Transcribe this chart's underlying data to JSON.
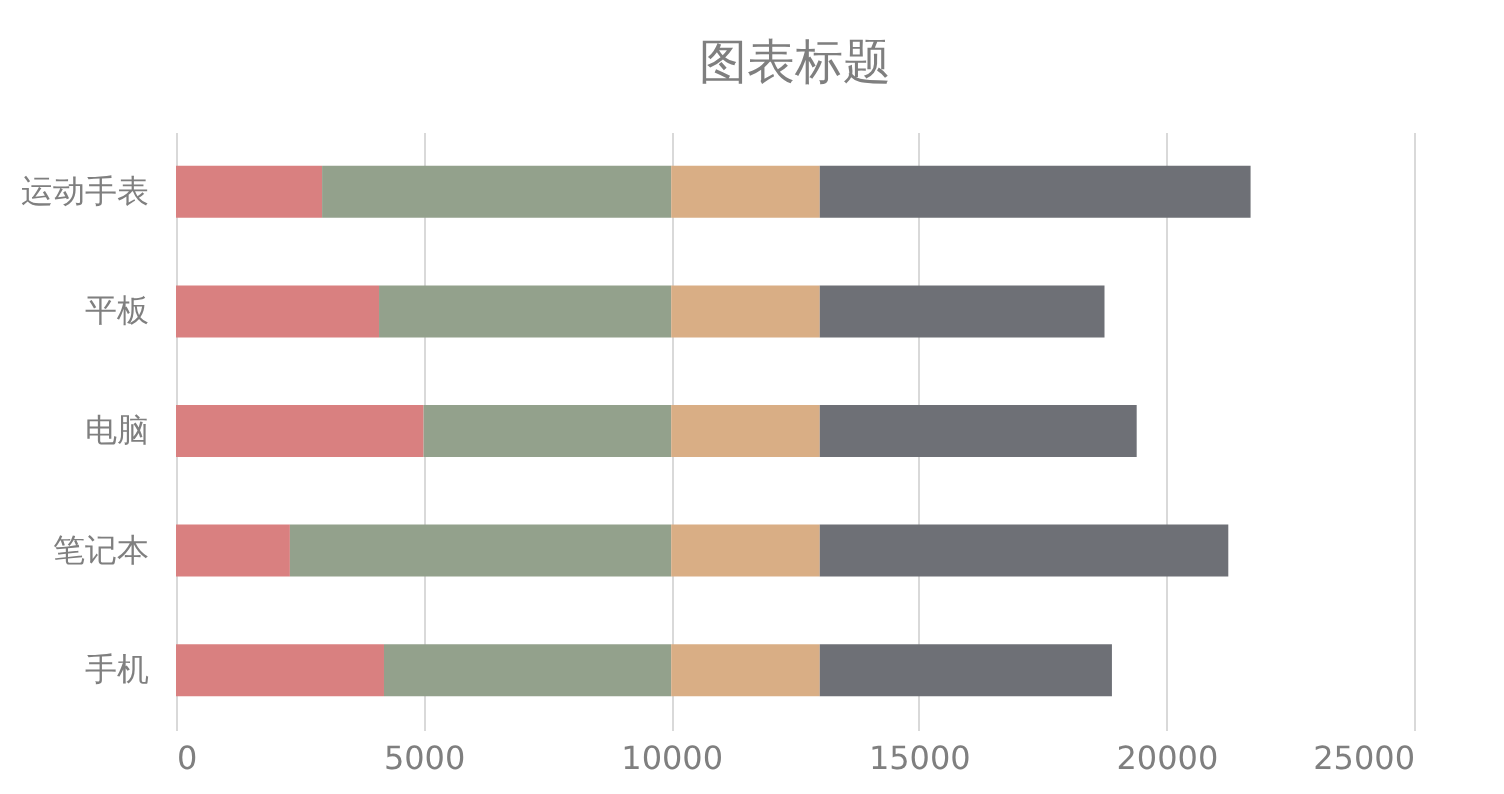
{
  "chart_data": {
    "type": "bar",
    "orientation": "horizontal",
    "stacked": true,
    "title": "图表标题",
    "categories": [
      "运动手表",
      "平板",
      "电脑",
      "笔记本",
      "手机"
    ],
    "series": [
      {
        "color": "#d98080",
        "values": [
          2950,
          4100,
          5000,
          2300,
          4200
        ]
      },
      {
        "color": "#93a18c",
        "values": [
          7050,
          5900,
          5000,
          7700,
          5800
        ]
      },
      {
        "color": "#d9ae85",
        "values": [
          3000,
          3000,
          3000,
          3000,
          3000
        ]
      },
      {
        "color": "#6e7076",
        "values": [
          8700,
          5750,
          6400,
          8250,
          5900
        ]
      }
    ],
    "xlim": [
      0,
      25000
    ],
    "xticks": [
      0,
      5000,
      10000,
      15000,
      20000,
      25000
    ],
    "grid": "x",
    "legend": false
  }
}
